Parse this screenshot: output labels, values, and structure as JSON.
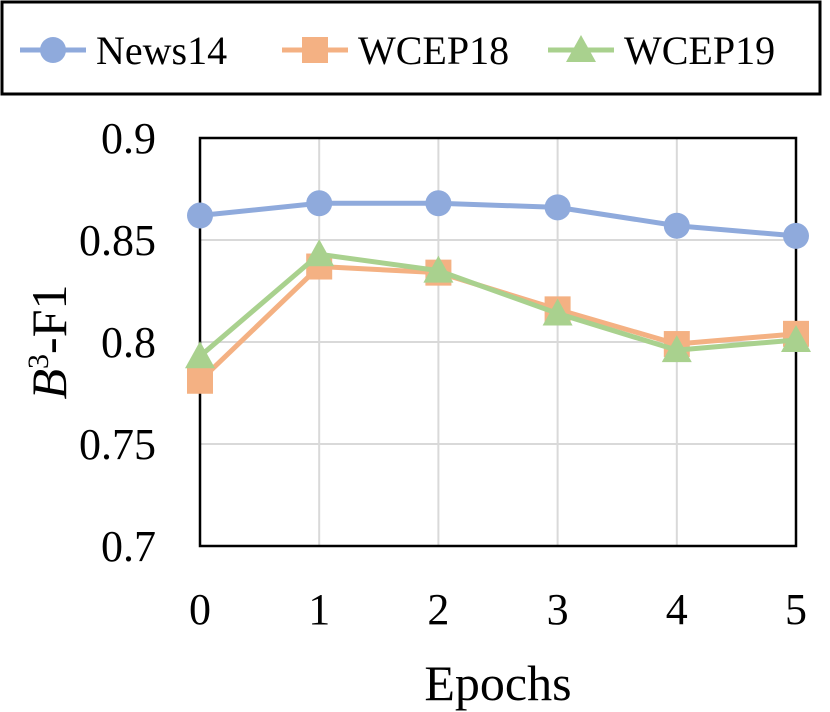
{
  "chart_data": {
    "type": "line",
    "x": [
      0,
      1,
      2,
      3,
      4,
      5
    ],
    "x_tick_labels": [
      "0",
      "1",
      "2",
      "3",
      "4",
      "5"
    ],
    "y_tick_labels": [
      "0.7",
      "0.75",
      "0.8",
      "0.85",
      "0.9"
    ],
    "y_ticks": [
      0.7,
      0.75,
      0.8,
      0.85,
      0.9
    ],
    "ylim": [
      0.7,
      0.9
    ],
    "xlabel": "Epochs",
    "ylabel_main": "B",
    "ylabel_sup": "3",
    "ylabel_rest": "-F1",
    "grid": true,
    "legend_position": "top",
    "series": [
      {
        "name": "News14",
        "color": "#8FAADC",
        "marker": "circle",
        "values": [
          0.862,
          0.868,
          0.868,
          0.866,
          0.857,
          0.852
        ]
      },
      {
        "name": "WCEP18",
        "color": "#F4B183",
        "marker": "square",
        "values": [
          0.781,
          0.837,
          0.834,
          0.816,
          0.799,
          0.804
        ]
      },
      {
        "name": "WCEP19",
        "color": "#A9D18E",
        "marker": "triangle",
        "values": [
          0.793,
          0.843,
          0.835,
          0.814,
          0.796,
          0.801
        ]
      }
    ]
  }
}
